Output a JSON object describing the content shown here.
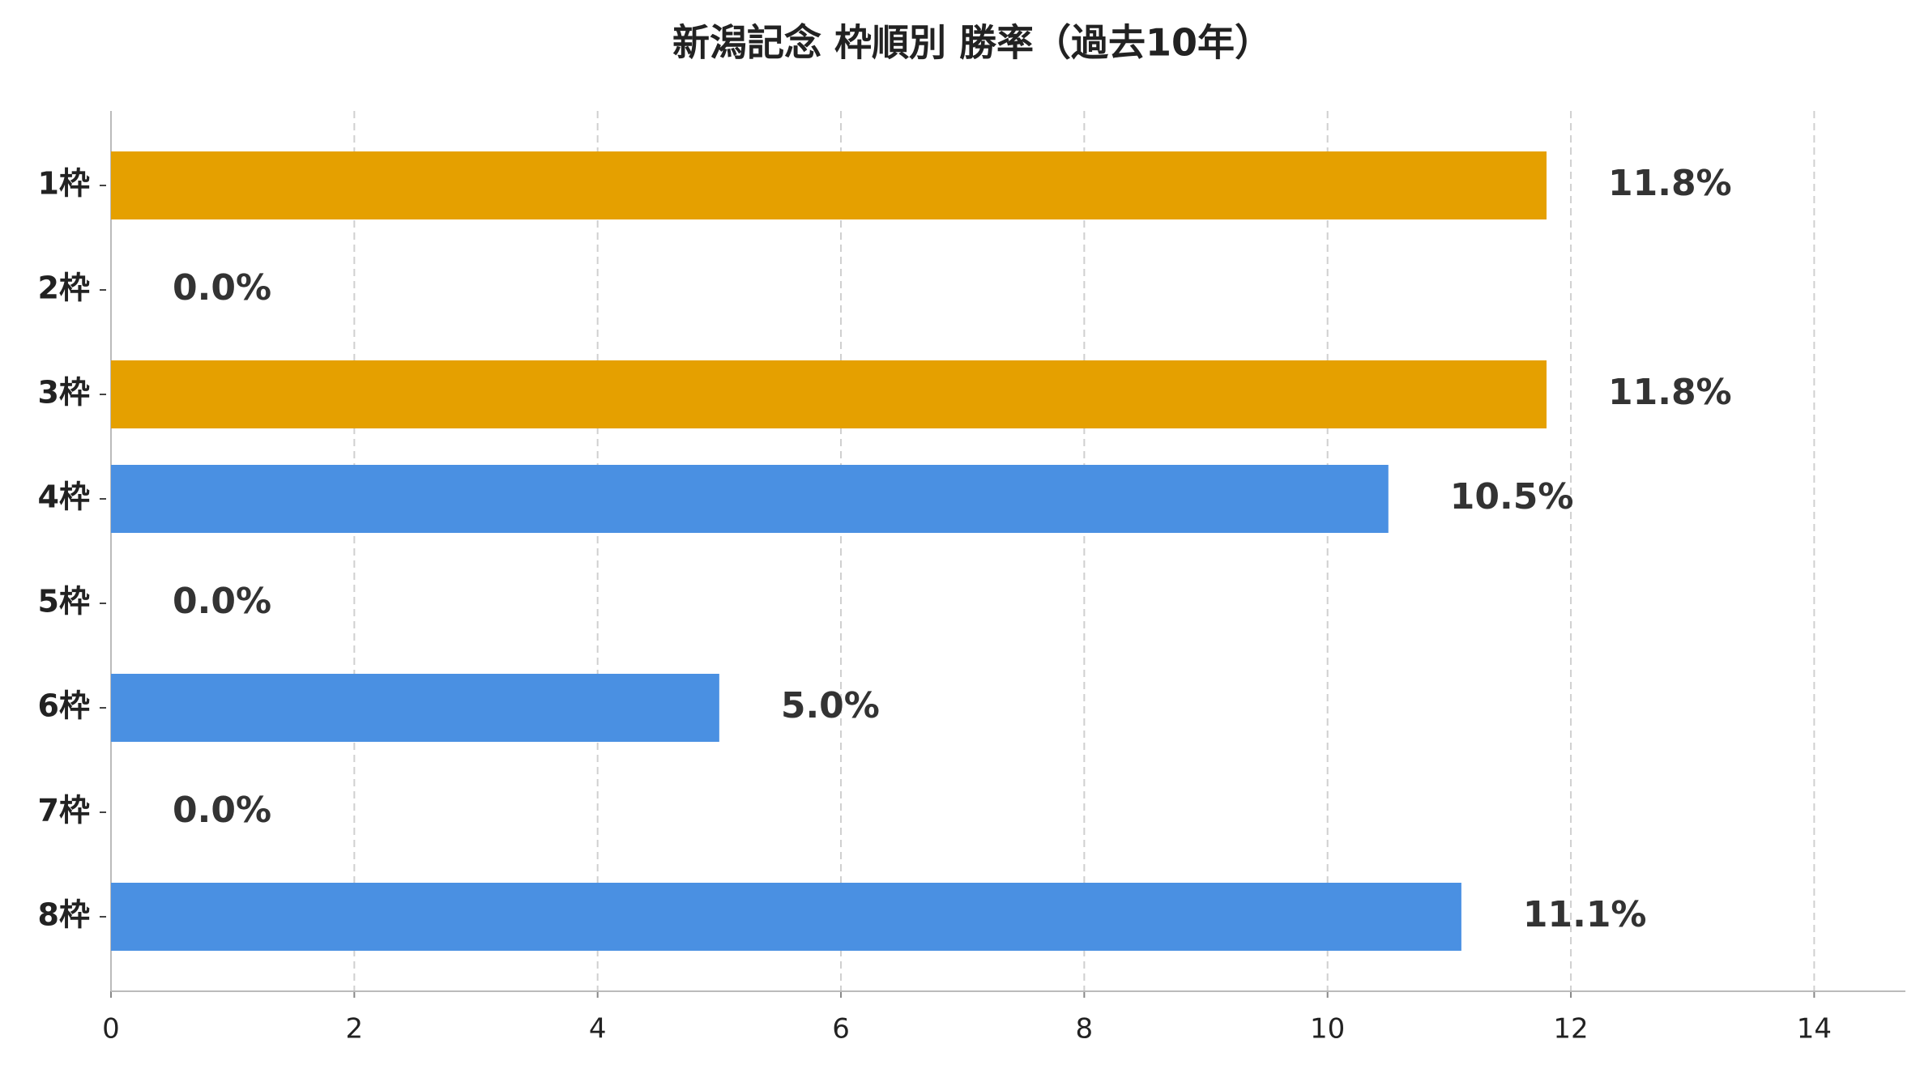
{
  "chart_data": {
    "type": "barh",
    "title": "新潟記念 枠順別 勝率（過去10年）",
    "categories": [
      "1枠",
      "2枠",
      "3枠",
      "4枠",
      "5枠",
      "6枠",
      "7枠",
      "8枠"
    ],
    "values": [
      11.8,
      0,
      11.8,
      10.5,
      0,
      5.0,
      0,
      11.1
    ],
    "value_labels": [
      "11.8%",
      "0.0%",
      "11.8%",
      "10.5%",
      "0.0%",
      "5.0%",
      "0.0%",
      "11.1%"
    ],
    "colors": [
      "#e5a000",
      "#4a90e2",
      "#e5a000",
      "#4a90e2",
      "#4a90e2",
      "#4a90e2",
      "#4a90e2",
      "#4a90e2"
    ],
    "xlim": [
      0,
      14.75
    ],
    "xticks": [
      0,
      2,
      4,
      6,
      8,
      10,
      12,
      14
    ],
    "grid": true
  }
}
